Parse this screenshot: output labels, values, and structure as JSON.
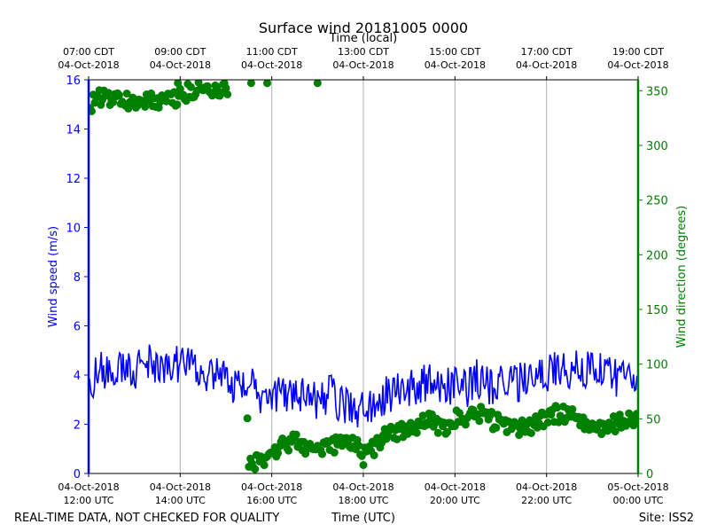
{
  "chart_data": {
    "type": "line+scatter",
    "title": "Surface wind 20181005 0000",
    "top_axis_label": "Time (local)",
    "bottom_axis_label": "Time (UTC)",
    "left_axis_label": "Wind speed (m/s)",
    "right_axis_label": "Wind direction (degrees)",
    "footer_left": "REAL-TIME DATA, NOT CHECKED FOR QUALITY",
    "footer_right": "Site: ISS2",
    "x_range_hours_utc": [
      12,
      24
    ],
    "xticks_utc": [
      {
        "hour": 12,
        "line1": "04-Oct-2018",
        "line2": "12:00 UTC"
      },
      {
        "hour": 14,
        "line1": "04-Oct-2018",
        "line2": "14:00 UTC"
      },
      {
        "hour": 16,
        "line1": "04-Oct-2018",
        "line2": "16:00 UTC"
      },
      {
        "hour": 18,
        "line1": "04-Oct-2018",
        "line2": "18:00 UTC"
      },
      {
        "hour": 20,
        "line1": "04-Oct-2018",
        "line2": "20:00 UTC"
      },
      {
        "hour": 22,
        "line1": "04-Oct-2018",
        "line2": "22:00 UTC"
      },
      {
        "hour": 24,
        "line1": "05-Oct-2018",
        "line2": "00:00 UTC"
      }
    ],
    "xticks_local": [
      {
        "hour": 12,
        "line1": "07:00 CDT",
        "line2": "04-Oct-2018"
      },
      {
        "hour": 14,
        "line1": "09:00 CDT",
        "line2": "04-Oct-2018"
      },
      {
        "hour": 16,
        "line1": "11:00 CDT",
        "line2": "04-Oct-2018"
      },
      {
        "hour": 18,
        "line1": "13:00 CDT",
        "line2": "04-Oct-2018"
      },
      {
        "hour": 20,
        "line1": "15:00 CDT",
        "line2": "04-Oct-2018"
      },
      {
        "hour": 22,
        "line1": "17:00 CDT",
        "line2": "04-Oct-2018"
      },
      {
        "hour": 24,
        "line1": "19:00 CDT",
        "line2": "04-Oct-2018"
      }
    ],
    "left_ylim": [
      0,
      16
    ],
    "left_yticks": [
      0,
      2,
      4,
      6,
      8,
      10,
      12,
      14,
      16
    ],
    "right_ylim": [
      0,
      360
    ],
    "right_yticks": [
      0,
      50,
      100,
      150,
      200,
      250,
      300,
      350
    ],
    "grid": "vertical",
    "series": [
      {
        "name": "Wind speed",
        "kind": "line",
        "axis": "left",
        "color": "#0000ff",
        "x_hours": [
          12.0,
          12.25,
          12.5,
          12.75,
          13.0,
          13.25,
          13.5,
          13.75,
          14.0,
          14.25,
          14.5,
          14.75,
          15.0,
          15.25,
          15.5,
          15.75,
          16.0,
          16.25,
          16.5,
          16.75,
          17.0,
          17.25,
          17.5,
          17.75,
          18.0,
          18.25,
          18.5,
          18.75,
          19.0,
          19.25,
          19.5,
          19.75,
          20.0,
          20.25,
          20.5,
          20.75,
          21.0,
          21.25,
          21.5,
          21.75,
          22.0,
          22.25,
          22.5,
          22.75,
          23.0,
          23.25,
          23.5,
          23.75,
          24.0
        ],
        "values": [
          3.5,
          4.3,
          3.9,
          4.5,
          4.2,
          4.6,
          4.1,
          4.5,
          4.4,
          4.8,
          4.0,
          4.2,
          3.8,
          3.5,
          3.6,
          3.2,
          3.0,
          3.4,
          3.1,
          3.5,
          2.9,
          3.3,
          2.8,
          2.6,
          2.5,
          3.0,
          3.2,
          3.3,
          3.4,
          3.6,
          3.8,
          3.5,
          3.6,
          3.4,
          3.9,
          3.5,
          3.7,
          3.6,
          3.8,
          4.0,
          4.1,
          4.3,
          4.0,
          4.4,
          4.1,
          4.2,
          3.9,
          4.1,
          3.9
        ],
        "noise_amplitude": 0.8
      },
      {
        "name": "Wind direction",
        "kind": "scatter",
        "axis": "right",
        "color": "#008000",
        "x_hours": [
          12.0,
          12.25,
          12.5,
          12.75,
          13.0,
          13.25,
          13.5,
          13.75,
          14.0,
          14.25,
          14.5,
          14.75,
          15.0,
          15.25,
          15.5,
          15.75,
          16.0,
          16.25,
          16.5,
          16.75,
          17.0,
          17.25,
          17.5,
          17.75,
          18.0,
          18.25,
          18.5,
          18.75,
          19.0,
          19.25,
          19.5,
          19.75,
          20.0,
          20.25,
          20.5,
          20.75,
          21.0,
          21.25,
          21.5,
          21.75,
          22.0,
          22.25,
          22.5,
          22.75,
          23.0,
          23.25,
          23.5,
          23.75,
          24.0
        ],
        "values": [
          335,
          345,
          343,
          341,
          340,
          342,
          337,
          340,
          345,
          350,
          352,
          348,
          352,
          355,
          8,
          12,
          18,
          25,
          30,
          22,
          20,
          25,
          28,
          30,
          15,
          25,
          35,
          38,
          40,
          45,
          48,
          42,
          50,
          52,
          55,
          50,
          45,
          40,
          42,
          45,
          50,
          55,
          52,
          48,
          45,
          40,
          45,
          48,
          50
        ],
        "noise_amplitude": 8,
        "outliers": [
          {
            "x_hour": 13.95,
            "value": 357
          },
          {
            "x_hour": 15.55,
            "value": 357
          },
          {
            "x_hour": 15.9,
            "value": 357
          },
          {
            "x_hour": 17.0,
            "value": 357
          }
        ]
      }
    ]
  }
}
